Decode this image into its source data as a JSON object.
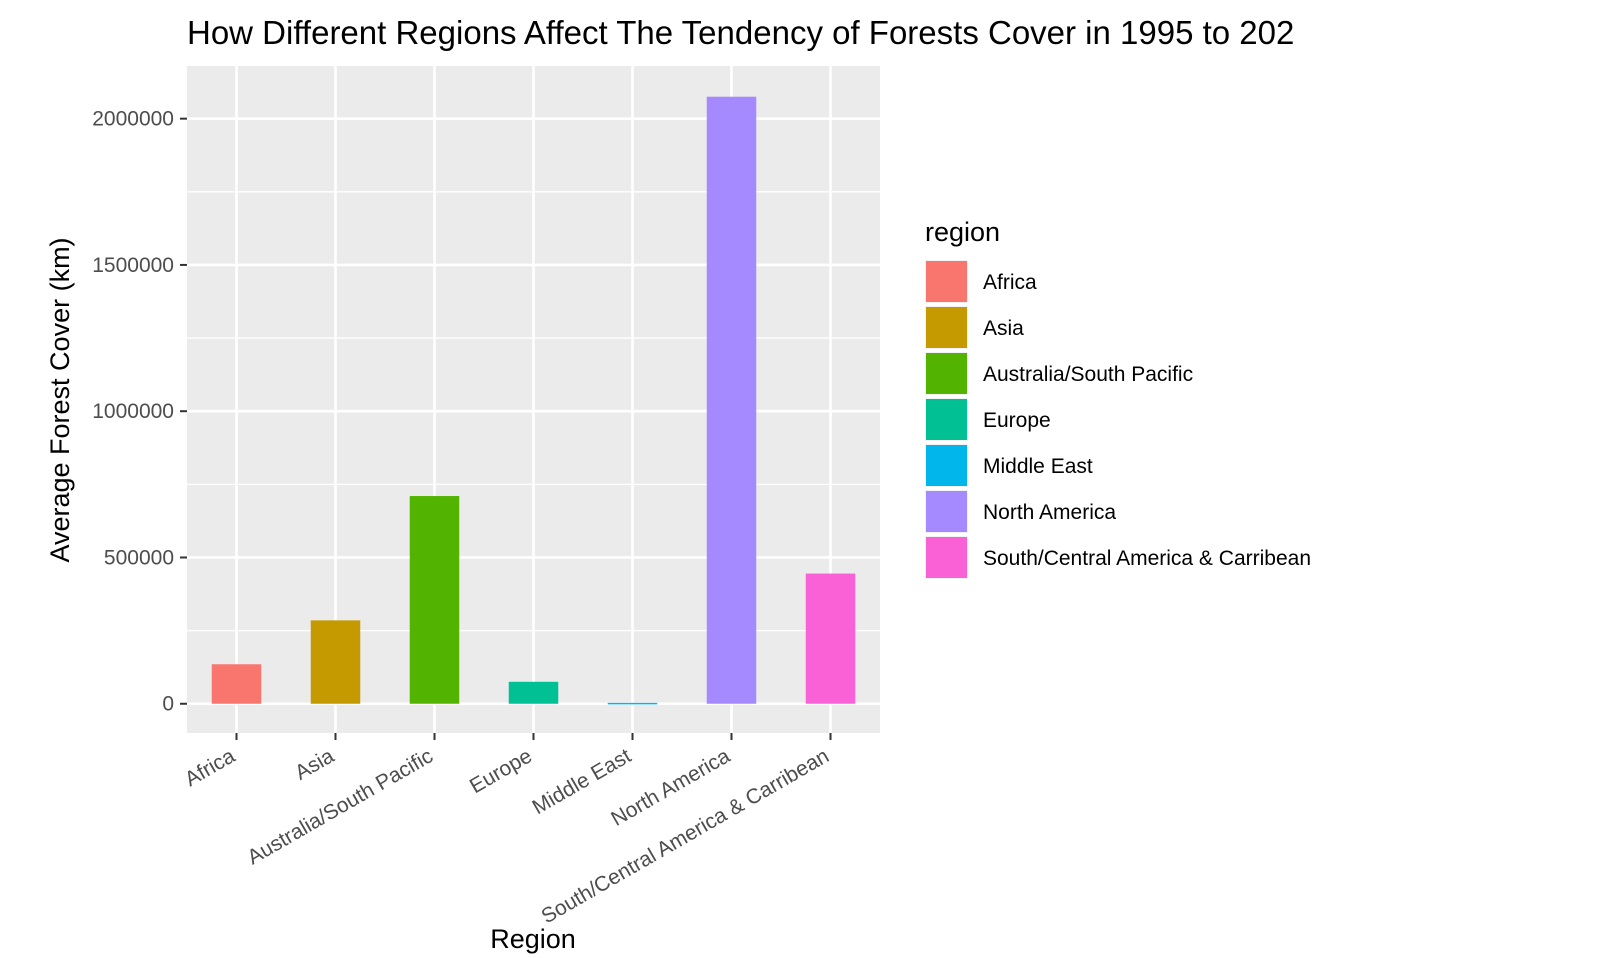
{
  "chart_data": {
    "type": "bar",
    "title": "How Different Regions Affect The Tendency of Forests Cover in 1995 to 202",
    "xlabel": "Region",
    "ylabel": "Average Forest Cover (km)",
    "categories": [
      "Africa",
      "Asia",
      "Australia/South Pacific",
      "Europe",
      "Middle East",
      "North America",
      "South/Central America & Carribean"
    ],
    "values": [
      135000,
      285000,
      710000,
      75000,
      3000,
      2075000,
      445000
    ],
    "colors": [
      "#F8766D",
      "#C49A00",
      "#53B400",
      "#00C094",
      "#00B6EB",
      "#A58AFF",
      "#FB61D7"
    ],
    "yticks": [
      0,
      500000,
      1000000,
      1500000,
      2000000
    ],
    "ytick_labels": [
      "0",
      "500000",
      "1000000",
      "1500000",
      "2000000"
    ],
    "ylim": [
      -100000,
      2180000
    ],
    "grid": true,
    "legend": {
      "title": "region",
      "position": "right",
      "entries": [
        "Africa",
        "Asia",
        "Australia/South Pacific",
        "Europe",
        "Middle East",
        "North America",
        "South/Central America & Carribean"
      ]
    },
    "panel_background": "#EBEBEB",
    "grid_color": "#FFFFFF"
  }
}
